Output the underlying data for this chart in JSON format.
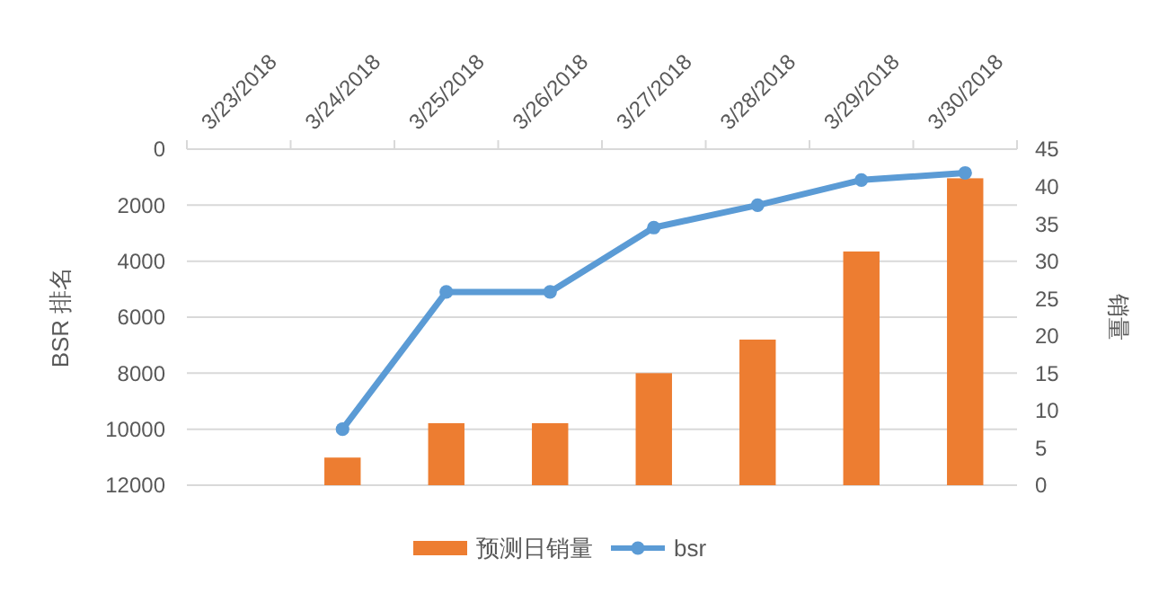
{
  "chart_data": {
    "type": "bar",
    "categories": [
      "3/23/2018",
      "3/24/2018",
      "3/25/2018",
      "3/26/2018",
      "3/27/2018",
      "3/28/2018",
      "3/29/2018",
      "3/30/2018"
    ],
    "series": [
      {
        "name": "预测日销量",
        "axis": "y2",
        "color": "#ed7d31",
        "values": [
          null,
          3.7,
          8.3,
          8.3,
          15,
          19.5,
          31.3,
          41.1
        ]
      },
      {
        "name": "bsr",
        "type": "line",
        "axis": "y",
        "color": "#5b9bd5",
        "marker": "circle",
        "values": [
          null,
          10000,
          5100,
          5100,
          2800,
          2000,
          1100,
          850
        ]
      }
    ],
    "ylabel": "BSR 排名",
    "y2label": "销量",
    "ylim": [
      12000,
      0
    ],
    "yticks": [
      0,
      2000,
      4000,
      6000,
      8000,
      10000,
      12000
    ],
    "y2lim": [
      0,
      45
    ],
    "y2ticks": [
      0,
      5,
      10,
      15,
      20,
      25,
      30,
      35,
      40,
      45
    ],
    "grid": "y",
    "legend": "bottom"
  }
}
